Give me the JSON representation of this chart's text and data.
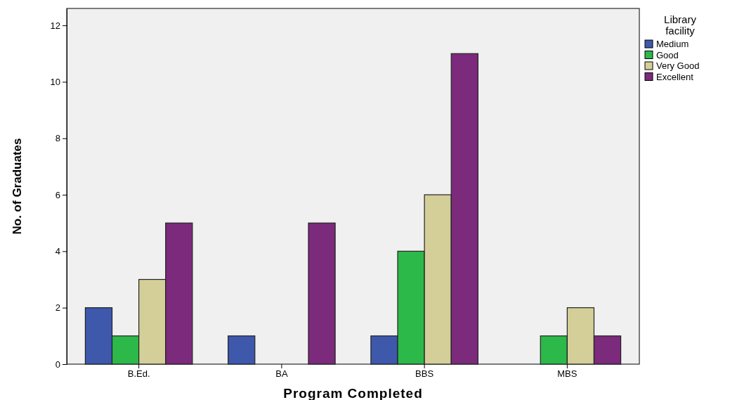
{
  "chart_data": {
    "type": "bar",
    "xlabel": "Program Completed",
    "ylabel": "No. of Graduates",
    "legend_title": "Library facility",
    "categories": [
      "B.Ed.",
      "BA",
      "BBS",
      "MBS"
    ],
    "series": [
      {
        "name": "Medium",
        "color": "#3e58ac",
        "values": [
          2,
          1,
          1,
          0
        ]
      },
      {
        "name": "Good",
        "color": "#2db84a",
        "values": [
          1,
          0,
          4,
          1
        ]
      },
      {
        "name": "Very Good",
        "color": "#d4cf98",
        "values": [
          3,
          0,
          6,
          2
        ]
      },
      {
        "name": "Excellent",
        "color": "#7b2a7c",
        "values": [
          5,
          5,
          11,
          1
        ]
      }
    ],
    "ylim": [
      0,
      12.6
    ],
    "yticks": [
      0,
      2,
      4,
      6,
      8,
      10,
      12
    ],
    "grid": false,
    "legend": "top right"
  }
}
